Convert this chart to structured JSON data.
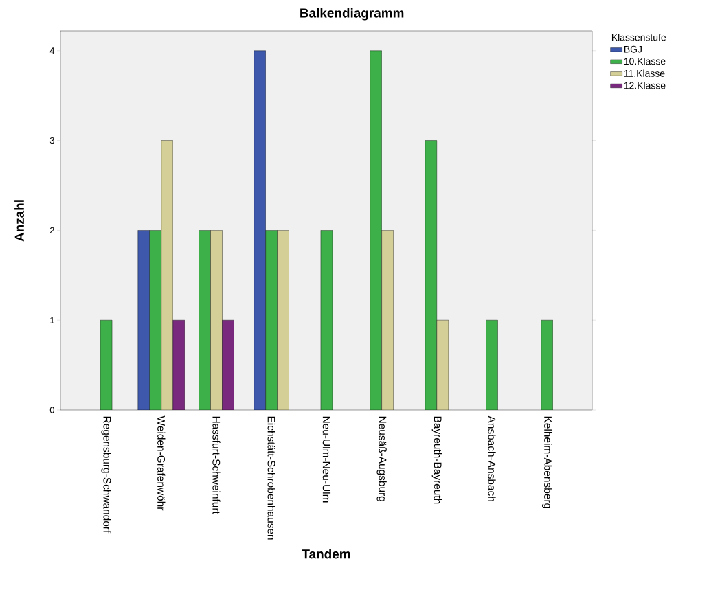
{
  "chart_data": {
    "type": "bar",
    "title": "Balkendiagramm",
    "xlabel": "Tandem",
    "ylabel": "Anzahl",
    "legend_title": "Klassenstufe",
    "legend": "right",
    "categories": [
      "Regensburg-Schwandorf",
      "Weiden-Grafenwöhr",
      "Hassfurt-Schweinfurt",
      "Eichstätt-Schrobenhausen",
      "Neu-Ulm-Neu-Ulm",
      "Neusäß-Augsburg",
      "Bayreuth-Bayreuth",
      "Ansbach-Ansbach",
      "Kelheim-Abensberg"
    ],
    "series": [
      {
        "name": "BGJ",
        "color": "#3e58ac",
        "values": [
          null,
          2,
          null,
          4,
          null,
          null,
          null,
          null,
          null
        ]
      },
      {
        "name": "10.Klasse",
        "color": "#3eb049",
        "values": [
          1,
          2,
          2,
          2,
          2,
          4,
          3,
          1,
          1
        ]
      },
      {
        "name": "11.Klasse",
        "color": "#d4cf97",
        "values": [
          null,
          3,
          2,
          2,
          null,
          2,
          1,
          null,
          null
        ]
      },
      {
        "name": "12.Klasse",
        "color": "#7a2a7e",
        "values": [
          null,
          1,
          1,
          null,
          null,
          null,
          null,
          null,
          null
        ]
      }
    ],
    "ylim": [
      0,
      4.22
    ],
    "yticks": [
      0,
      1,
      2,
      3,
      4
    ]
  }
}
